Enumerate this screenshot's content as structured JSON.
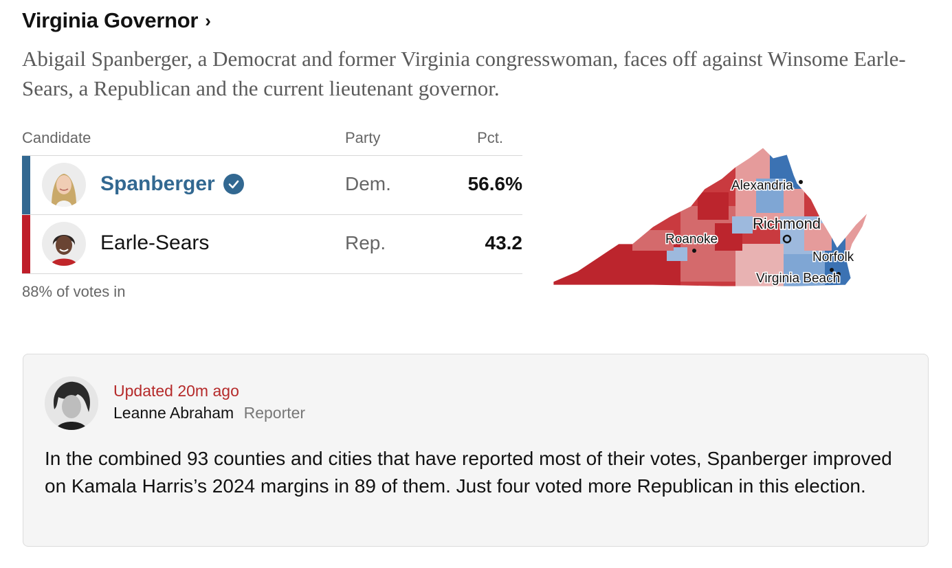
{
  "race": {
    "title": "Virginia Governor",
    "chevron": "›",
    "description": "Abigail Spanberger, a Democrat and former Virginia congresswoman, faces off against Winsome Earle-Sears, a Republican and the current lieutenant governor."
  },
  "table": {
    "headers": {
      "candidate": "Candidate",
      "party": "Party",
      "pct": "Pct."
    },
    "rows": [
      {
        "name": "Spanberger",
        "party": "Dem.",
        "pct": "56.6%",
        "winner": true,
        "color": "#326891",
        "icon": "verified-check-icon"
      },
      {
        "name": "Earle-Sears",
        "party": "Rep.",
        "pct": "43.2",
        "winner": false,
        "color": "#bf1d29"
      }
    ],
    "votes_in": "88% of votes in"
  },
  "map": {
    "labels": [
      "Alexandria",
      "Richmond",
      "Roanoke",
      "Norfolk",
      "Virginia Beach"
    ],
    "colors": {
      "dem": "#3b72b3",
      "rep": "#c4262e",
      "lean_dem": "#9db9dd",
      "lean_rep": "#e59b9b"
    }
  },
  "update": {
    "updated": "Updated 20m ago",
    "author": "Leanne Abraham",
    "role": "Reporter",
    "body": "In the combined 93 counties and cities that have reported most of their votes, Spanberger improved on Kamala Harris’s 2024 margins in 89 of them. Just four voted more Republican in this election."
  }
}
